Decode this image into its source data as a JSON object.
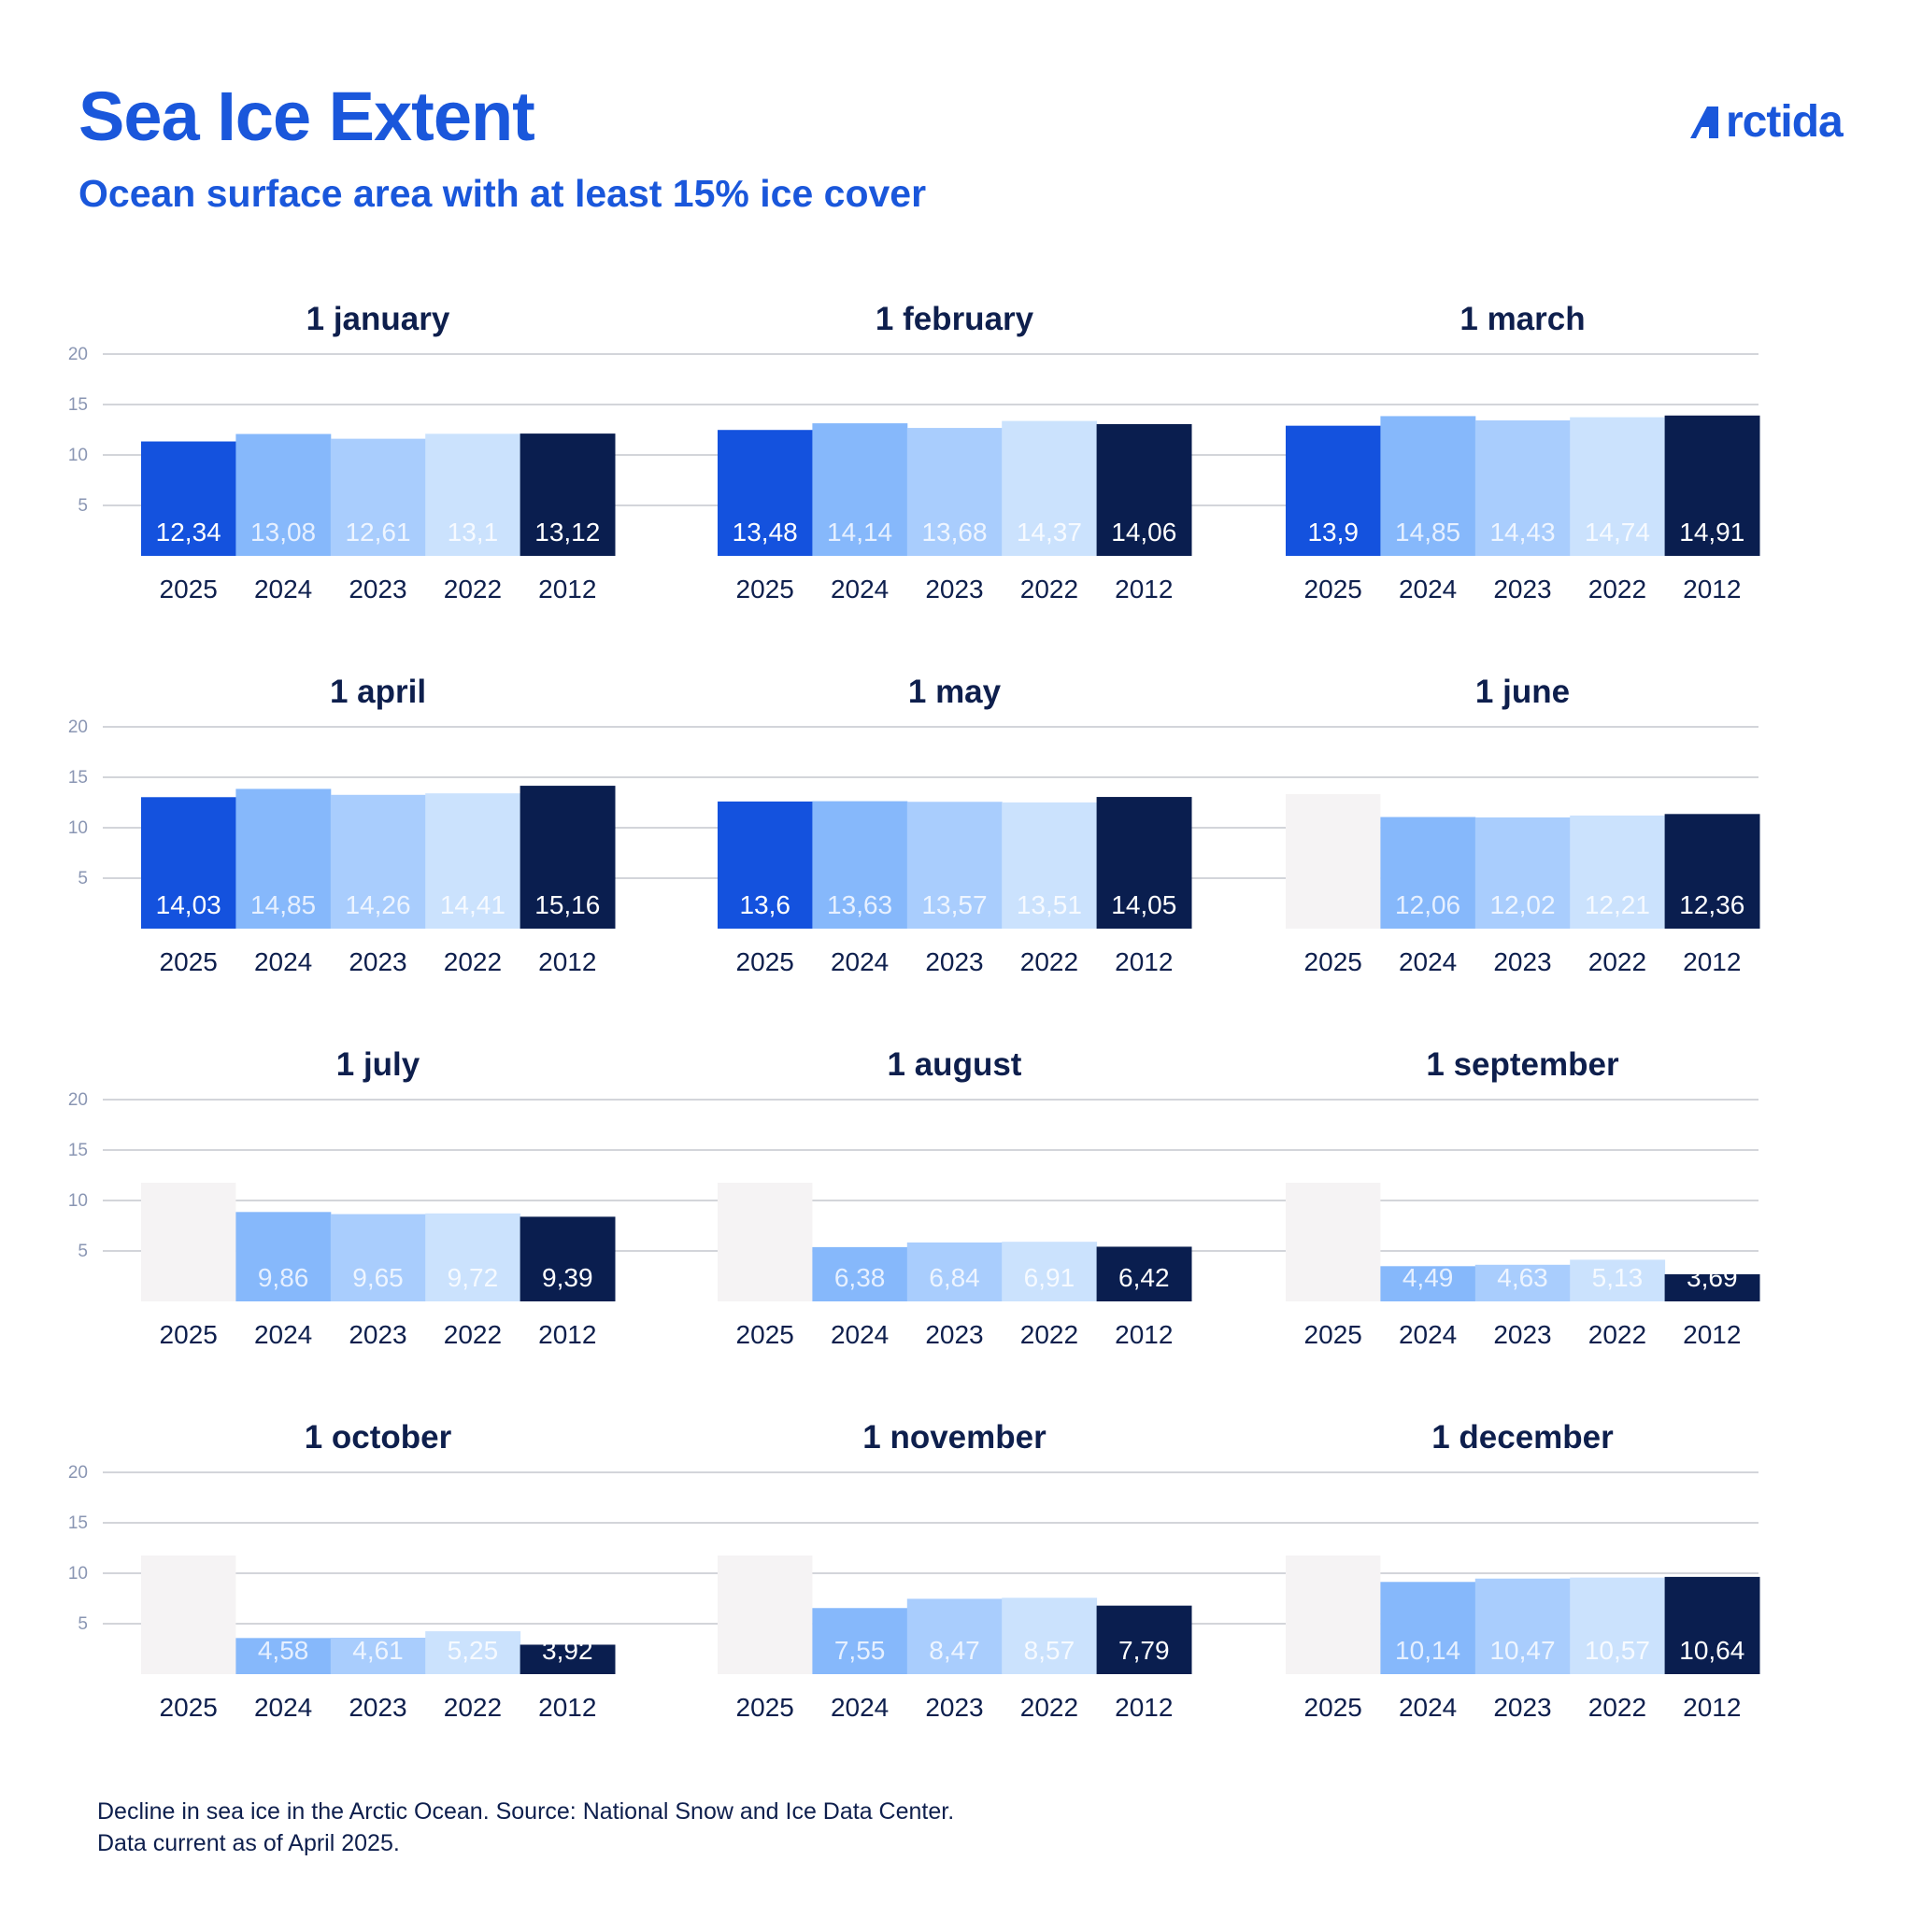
{
  "header": {
    "title": "Sea Ice Extent",
    "subtitle": "Ocean surface area with at least 15% ice cover",
    "logo_text": "rctida"
  },
  "footer": {
    "line1": "Decline in sea ice in the Arctic Ocean. Source: National Snow and Ice Data Center.",
    "line2": "Data current as of April 2025."
  },
  "colors": {
    "brand": "#1a57db",
    "y2025": "#1452de",
    "y2024": "#86b8fb",
    "y2023": "#a9cdfd",
    "y2022": "#cbe2fd",
    "y2012": "#0a1e4f",
    "placeholder": "#f5f3f4",
    "grid": "#b9bcc4",
    "axis_text": "#8a96b3",
    "panel_title": "#0e1f4d"
  },
  "chart_data": {
    "type": "bar",
    "categories": [
      "2025",
      "2024",
      "2023",
      "2022",
      "2012"
    ],
    "ylim": [
      0,
      20
    ],
    "yticks": [
      "5",
      "10",
      "15",
      "20"
    ],
    "panels": [
      {
        "title": "1 january",
        "values": [
          12.34,
          13.08,
          12.61,
          13.1,
          13.12
        ],
        "labels": [
          "12,34",
          "13,08",
          "12,61",
          "13,1",
          "13,12"
        ]
      },
      {
        "title": "1 february",
        "values": [
          13.48,
          14.14,
          13.68,
          14.37,
          14.06
        ],
        "labels": [
          "13,48",
          "14,14",
          "13,68",
          "14,37",
          "14,06"
        ]
      },
      {
        "title": "1 march",
        "values": [
          13.9,
          14.85,
          14.43,
          14.74,
          14.91
        ],
        "labels": [
          "13,9",
          "14,85",
          "14,43",
          "14,74",
          "14,91"
        ]
      },
      {
        "title": "1 april",
        "values": [
          14.03,
          14.85,
          14.26,
          14.41,
          15.16
        ],
        "labels": [
          "14,03",
          "14,85",
          "14,26",
          "14,41",
          "15,16"
        ]
      },
      {
        "title": "1 may",
        "values": [
          13.6,
          13.63,
          13.57,
          13.51,
          14.05
        ],
        "labels": [
          "13,6",
          "13,63",
          "13,57",
          "13,51",
          "14,05"
        ]
      },
      {
        "title": "1 june",
        "values": [
          null,
          12.06,
          12.02,
          12.21,
          12.36
        ],
        "labels": [
          "",
          "12,06",
          "12,02",
          "12,21",
          "12,36"
        ]
      },
      {
        "title": "1 july",
        "values": [
          null,
          9.86,
          9.65,
          9.72,
          9.39
        ],
        "labels": [
          "",
          "9,86",
          "9,65",
          "9,72",
          "9,39"
        ]
      },
      {
        "title": "1 august",
        "values": [
          null,
          6.38,
          6.84,
          6.91,
          6.42
        ],
        "labels": [
          "",
          "6,38",
          "6,84",
          "6,91",
          "6,42"
        ]
      },
      {
        "title": "1 september",
        "values": [
          null,
          4.49,
          4.63,
          5.13,
          3.69
        ],
        "labels": [
          "",
          "4,49",
          "4,63",
          "5,13",
          "3,69"
        ]
      },
      {
        "title": "1 october",
        "values": [
          null,
          4.58,
          4.61,
          5.25,
          3.92
        ],
        "labels": [
          "",
          "4,58",
          "4,61",
          "5,25",
          "3,92"
        ]
      },
      {
        "title": "1 november",
        "values": [
          null,
          7.55,
          8.47,
          8.57,
          7.79
        ],
        "labels": [
          "",
          "7,55",
          "8,47",
          "8,57",
          "7,79"
        ]
      },
      {
        "title": "1 december",
        "values": [
          null,
          10.14,
          10.47,
          10.57,
          10.64
        ],
        "labels": [
          "",
          "10,14",
          "10,47",
          "10,57",
          "10,64"
        ]
      }
    ]
  }
}
